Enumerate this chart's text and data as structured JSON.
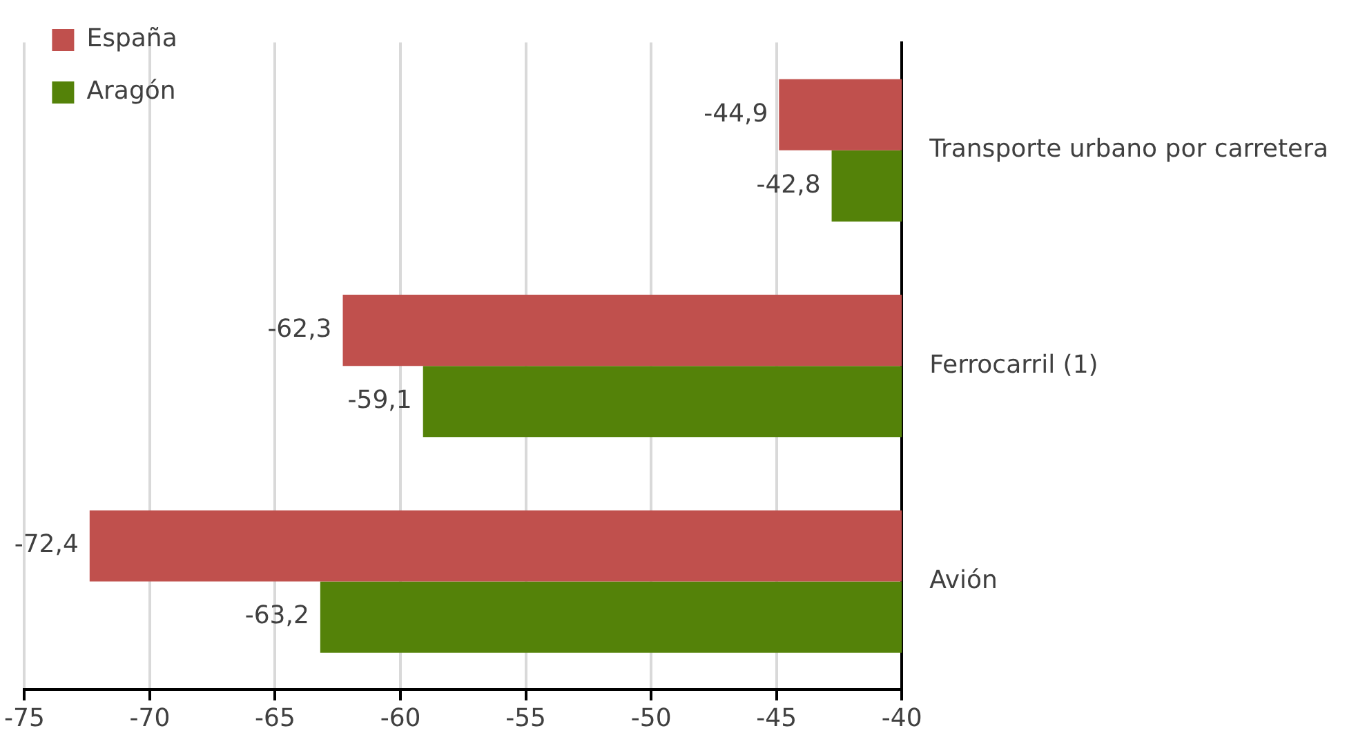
{
  "chart_data": {
    "type": "bar",
    "orientation": "horizontal",
    "categories": [
      "Transporte urbano por carretera",
      "Ferrocarril (1)",
      "Avión"
    ],
    "series": [
      {
        "name": "España",
        "color": "#c0504d",
        "values": [
          -44.9,
          -62.3,
          -72.4
        ],
        "value_labels": [
          "-44,9",
          "-62,3",
          "-72,4"
        ]
      },
      {
        "name": "Aragón",
        "color": "#548209",
        "values": [
          -42.8,
          -59.1,
          -63.2
        ],
        "value_labels": [
          "-42,8",
          "-59,1",
          "-63,2"
        ]
      }
    ],
    "xlim": [
      -75,
      -40
    ],
    "xticks": [
      -75,
      -70,
      -65,
      -60,
      -55,
      -50,
      -45,
      -40
    ],
    "grid": "x",
    "legend": "top left"
  }
}
